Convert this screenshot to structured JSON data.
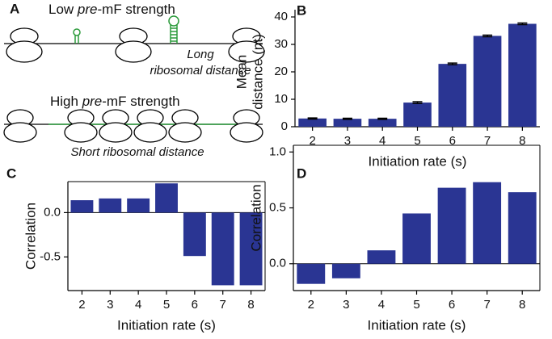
{
  "diagram": {
    "panel": "A",
    "low_title": {
      "prefix": "Low ",
      "italic": "pre",
      "suffix": "-mF strength"
    },
    "long_label": [
      "Long",
      "ribosomal distance"
    ],
    "high_title": {
      "prefix": "High ",
      "italic": "pre",
      "suffix": "-mF strength"
    },
    "short_label": "Short ribosomal distance"
  },
  "chart_data": [
    {
      "type": "bar",
      "panel": "B",
      "ylabel": [
        "Mean",
        "distance (nt)"
      ],
      "xlabel": "Initiation rate (s)",
      "categories": [
        "2",
        "3",
        "4",
        "5",
        "6",
        "7",
        "8"
      ],
      "values": [
        3.0,
        2.9,
        2.9,
        8.8,
        22.9,
        33.1,
        37.5
      ],
      "errors": [
        0.2,
        0.2,
        0.2,
        0.3,
        0.3,
        0.3,
        0.3
      ],
      "color": "#2a3593",
      "ylim": [
        0,
        40
      ],
      "yticks": [
        0,
        10,
        20,
        30,
        40
      ]
    },
    {
      "type": "bar",
      "panel": "C",
      "ylabel": [
        "Correlation"
      ],
      "xlabel": "Initiation rate (s)",
      "categories": [
        "2",
        "3",
        "4",
        "5",
        "6",
        "7",
        "8"
      ],
      "values": [
        0.14,
        0.16,
        0.16,
        0.33,
        -0.49,
        -0.82,
        -0.82
      ],
      "color": "#2a3593",
      "ylim": [
        -0.88,
        0.35
      ],
      "yticks": [
        {
          "value": 0,
          "label": "0.0"
        },
        -0.5
      ]
    },
    {
      "type": "bar",
      "panel": "D",
      "ylabel": [
        "Correlation"
      ],
      "xlabel": "Initiation rate (s)",
      "categories": [
        "2",
        "3",
        "4",
        "5",
        "6",
        "7",
        "8"
      ],
      "values": [
        -0.18,
        -0.13,
        0.12,
        0.45,
        0.68,
        0.73,
        0.64
      ],
      "color": "#2a3593",
      "ylim": [
        -0.24,
        1.06
      ],
      "yticks": [
        {
          "value": 0,
          "label": "0.0"
        },
        {
          "value": 0.5,
          "label": "0.5"
        },
        {
          "value": 1,
          "label": "1.0"
        }
      ]
    }
  ]
}
